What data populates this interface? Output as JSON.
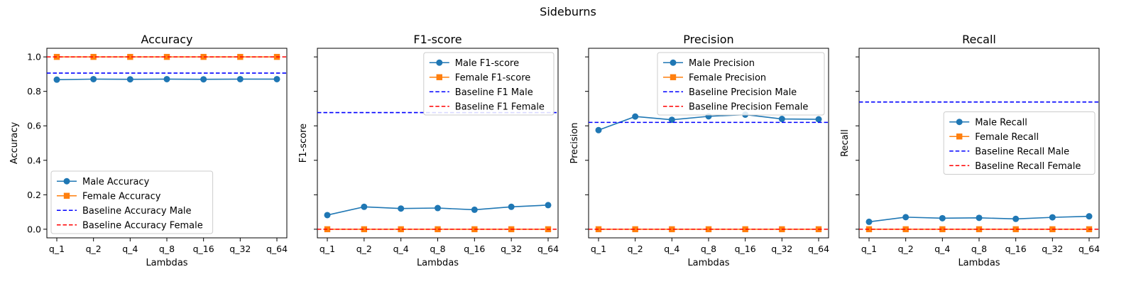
{
  "figure": {
    "title": "Sideburns"
  },
  "colors": {
    "male": "#1f77b4",
    "female": "#ff7f0e",
    "baseline_male": "#0000ff",
    "baseline_female": "#ff0000"
  },
  "chart_data": [
    {
      "type": "line",
      "title": "Accuracy",
      "xlabel": "Lambdas",
      "ylabel": "Accuracy",
      "categories": [
        "q_1",
        "q_2",
        "q_4",
        "q_8",
        "q_16",
        "q_32",
        "q_64"
      ],
      "ylim": [
        -0.05,
        1.05
      ],
      "yticks": [
        0.0,
        0.2,
        0.4,
        0.6,
        0.8,
        1.0
      ],
      "ytick_labels": [
        "0.0",
        "0.2",
        "0.4",
        "0.6",
        "0.8",
        "1.0"
      ],
      "legend_position": "lower-left",
      "series": [
        {
          "name": "Male Accuracy",
          "kind": "male",
          "values": [
            0.868,
            0.871,
            0.87,
            0.871,
            0.87,
            0.871,
            0.871
          ]
        },
        {
          "name": "Female Accuracy",
          "kind": "female",
          "values": [
            1.0,
            1.0,
            1.0,
            1.0,
            1.0,
            1.0,
            1.0
          ]
        }
      ],
      "baselines": [
        {
          "name": "Baseline Accuracy Male",
          "kind": "baseline_male",
          "value": 0.906
        },
        {
          "name": "Baseline Accuracy Female",
          "kind": "baseline_female",
          "value": 1.0
        }
      ]
    },
    {
      "type": "line",
      "title": "F1-score",
      "xlabel": "Lambdas",
      "ylabel": "F1-score",
      "categories": [
        "q_1",
        "q_2",
        "q_4",
        "q_8",
        "q_16",
        "q_32",
        "q_64"
      ],
      "ylim": [
        -0.05,
        1.05
      ],
      "yticks": [
        0.0,
        0.2,
        0.4,
        0.6,
        0.8,
        1.0
      ],
      "ytick_labels": [
        "",
        "",
        "",
        "",
        "",
        ""
      ],
      "legend_position": "upper-right",
      "series": [
        {
          "name": "Male F1-score",
          "kind": "male",
          "values": [
            0.082,
            0.13,
            0.12,
            0.123,
            0.113,
            0.13,
            0.14
          ]
        },
        {
          "name": "Female F1-score",
          "kind": "female",
          "values": [
            0.0,
            0.0,
            0.0,
            0.0,
            0.0,
            0.0,
            0.0
          ]
        }
      ],
      "baselines": [
        {
          "name": "Baseline F1 Male",
          "kind": "baseline_male",
          "value": 0.677
        },
        {
          "name": "Baseline F1 Female",
          "kind": "baseline_female",
          "value": 0.0
        }
      ]
    },
    {
      "type": "line",
      "title": "Precision",
      "xlabel": "Lambdas",
      "ylabel": "Precision",
      "categories": [
        "q_1",
        "q_2",
        "q_4",
        "q_8",
        "q_16",
        "q_32",
        "q_64"
      ],
      "ylim": [
        -0.05,
        1.05
      ],
      "yticks": [
        0.0,
        0.2,
        0.4,
        0.6,
        0.8,
        1.0
      ],
      "ytick_labels": [
        "",
        "",
        "",
        "",
        "",
        ""
      ],
      "legend_position": "upper-right",
      "series": [
        {
          "name": "Male Precision",
          "kind": "male",
          "values": [
            0.575,
            0.654,
            0.635,
            0.655,
            0.665,
            0.64,
            0.638
          ]
        },
        {
          "name": "Female Precision",
          "kind": "female",
          "values": [
            0.0,
            0.0,
            0.0,
            0.0,
            0.0,
            0.0,
            0.0
          ]
        }
      ],
      "baselines": [
        {
          "name": "Baseline Precision Male",
          "kind": "baseline_male",
          "value": 0.62
        },
        {
          "name": "Baseline Precision Female",
          "kind": "baseline_female",
          "value": 0.0
        }
      ]
    },
    {
      "type": "line",
      "title": "Recall",
      "xlabel": "Lambdas",
      "ylabel": "Recall",
      "categories": [
        "q_1",
        "q_2",
        "q_4",
        "q_8",
        "q_16",
        "q_32",
        "q_64"
      ],
      "ylim": [
        -0.05,
        1.05
      ],
      "yticks": [
        0.0,
        0.2,
        0.4,
        0.6,
        0.8,
        1.0
      ],
      "ytick_labels": [
        "",
        "",
        "",
        "",
        "",
        ""
      ],
      "legend_position": "center-right",
      "series": [
        {
          "name": "Male Recall",
          "kind": "male",
          "values": [
            0.043,
            0.07,
            0.064,
            0.066,
            0.06,
            0.069,
            0.075
          ]
        },
        {
          "name": "Female Recall",
          "kind": "female",
          "values": [
            0.0,
            0.0,
            0.0,
            0.0,
            0.0,
            0.0,
            0.0
          ]
        }
      ],
      "baselines": [
        {
          "name": "Baseline Recall Male",
          "kind": "baseline_male",
          "value": 0.738
        },
        {
          "name": "Baseline Recall Female",
          "kind": "baseline_female",
          "value": 0.0
        }
      ]
    }
  ]
}
